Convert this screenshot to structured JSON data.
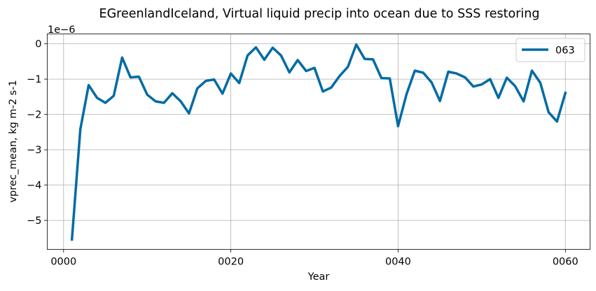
{
  "chart_data": {
    "type": "line",
    "title": "EGreenlandIceland, Virtual liquid precip into ocean due to SSS restoring",
    "xlabel": "Year",
    "ylabel": "vprec_mean, kg m-2 s-1",
    "y_offset_label": "1e−6",
    "xlim": [
      -1.95,
      62.95
    ],
    "ylim": [
      -5.82,
      0.28
    ],
    "x_ticks": [
      0,
      20,
      40,
      60
    ],
    "x_tick_labels": [
      "0000",
      "0020",
      "0040",
      "0060"
    ],
    "y_ticks": [
      -5,
      -4,
      -3,
      -2,
      -1,
      0
    ],
    "y_tick_labels": [
      "−5",
      "−4",
      "−3",
      "−2",
      "−1",
      "0"
    ],
    "grid": true,
    "legend_position": "top-right",
    "series": [
      {
        "name": "063",
        "color": "#006ba4",
        "x": [
          1,
          2,
          3,
          4,
          5,
          6,
          7,
          8,
          9,
          10,
          11,
          12,
          13,
          14,
          15,
          16,
          17,
          18,
          19,
          20,
          21,
          22,
          23,
          24,
          25,
          26,
          27,
          28,
          29,
          30,
          31,
          32,
          33,
          34,
          35,
          36,
          37,
          38,
          39,
          40,
          41,
          42,
          43,
          44,
          45,
          46,
          47,
          48,
          49,
          50,
          51,
          52,
          53,
          54,
          55,
          56,
          57,
          58,
          59,
          60
        ],
        "values": [
          -5.54,
          -2.42,
          -1.17,
          -1.53,
          -1.67,
          -1.47,
          -0.39,
          -0.95,
          -0.93,
          -1.44,
          -1.63,
          -1.67,
          -1.4,
          -1.63,
          -1.97,
          -1.26,
          -1.05,
          -1.01,
          -1.41,
          -0.84,
          -1.11,
          -0.33,
          -0.1,
          -0.45,
          -0.11,
          -0.33,
          -0.81,
          -0.46,
          -0.77,
          -0.68,
          -1.35,
          -1.24,
          -0.91,
          -0.65,
          -0.02,
          -0.43,
          -0.44,
          -0.97,
          -0.98,
          -2.33,
          -1.43,
          -0.76,
          -0.82,
          -1.09,
          -1.62,
          -0.79,
          -0.84,
          -0.95,
          -1.21,
          -1.15,
          -1.0,
          -1.53,
          -0.96,
          -1.2,
          -1.63,
          -0.76,
          -1.1,
          -1.94,
          -2.2,
          -1.39
        ]
      }
    ]
  }
}
